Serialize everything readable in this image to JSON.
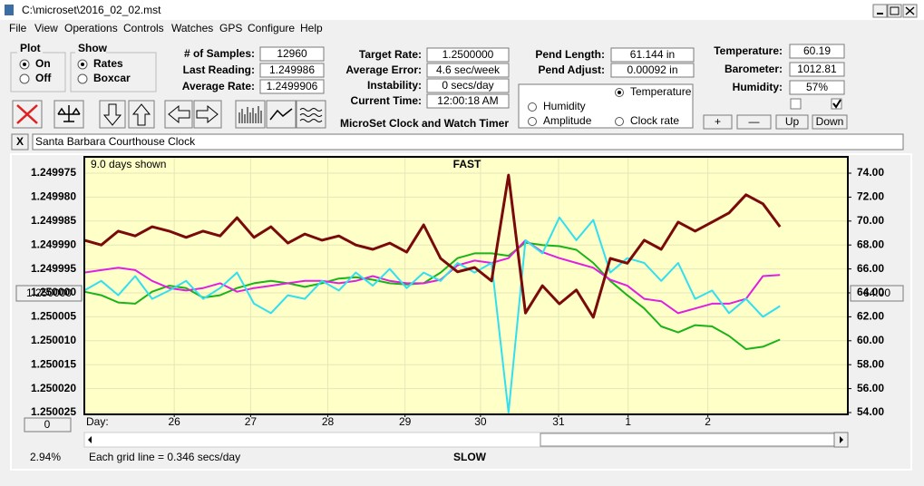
{
  "window": {
    "title": "C:\\microset\\2016_02_02.mst"
  },
  "menu": [
    "File",
    "View",
    "Operations",
    "Controls",
    "Watches",
    "GPS",
    "Configure",
    "Help"
  ],
  "plot_group": {
    "title": "Plot",
    "options": [
      "On",
      "Off"
    ]
  },
  "show_group": {
    "title": "Show",
    "options": [
      "Rates",
      "Boxcar"
    ]
  },
  "fields": [
    [
      {
        "label": "# of Samples:",
        "value": "12960"
      },
      {
        "label": "Last Reading:",
        "value": "1.249986"
      },
      {
        "label": "Average Rate:",
        "value": "1.2499906"
      }
    ],
    [
      {
        "label": "Target Rate:",
        "value": "1.2500000"
      },
      {
        "label": "Average Error:",
        "value": "4.6 sec/week"
      },
      {
        "label": "Instability:",
        "value": "0 secs/day"
      },
      {
        "label": "Current Time:",
        "value": "12:00:18 AM"
      }
    ],
    [
      {
        "label": "Pend Length:",
        "value": "61.144 in"
      },
      {
        "label": "Pend Adjust:",
        "value": "0.00092 in"
      }
    ],
    [
      {
        "label": "Temperature:",
        "value": "60.19"
      },
      {
        "label": "Barometer:",
        "value": "1012.81"
      },
      {
        "label": "Humidity:",
        "value": "57%"
      }
    ]
  ],
  "app_title": "MicroSet Clock and Watch Timer",
  "buttons": [
    "+",
    "—",
    "Up",
    "Down"
  ],
  "close_button": "X",
  "note": "Santa Barbara Courthouse Clock",
  "chart_data": {
    "type": "line",
    "days_shown": "9.0 days shown",
    "top_label": "FAST",
    "bottom_label": "SLOW",
    "x_label": "Day:",
    "grid_note": "Each grid line = 0.346 secs/day",
    "percent": "2.94%",
    "left_center": "1.250000",
    "right_center": "64.00",
    "offset": "0",
    "grid": true,
    "yreverse": true,
    "xlim": [
      0,
      9
    ],
    "xticks": [
      {
        "value": 1.06,
        "label": "26"
      },
      {
        "value": 1.96,
        "label": "27"
      },
      {
        "value": 2.87,
        "label": "28"
      },
      {
        "value": 3.78,
        "label": "29"
      },
      {
        "value": 4.67,
        "label": "30"
      },
      {
        "value": 5.59,
        "label": "31"
      },
      {
        "value": 6.41,
        "label": "1"
      },
      {
        "value": 7.35,
        "label": "2"
      }
    ],
    "ylim": [
      1.249975,
      1.250025
    ],
    "yticks": [
      1.249975,
      {
        "value": 1.24998,
        "label": "1.249980"
      },
      1.249985,
      {
        "value": 1.24999,
        "label": "1.249990"
      },
      1.249995,
      {
        "value": 1.25,
        "label": "1.250000"
      },
      1.250005,
      {
        "value": 1.25001,
        "label": "1.250010"
      },
      1.250015,
      {
        "value": 1.25002,
        "label": "1.250020"
      },
      1.250025
    ],
    "y2lim": [
      54,
      74
    ],
    "y2ticks": [
      {
        "value": 74,
        "label": "74.00"
      },
      {
        "value": 72,
        "label": "72.00"
      },
      {
        "value": 70,
        "label": "70.00"
      },
      {
        "value": 68,
        "label": "68.00"
      },
      {
        "value": 66,
        "label": "66.00"
      },
      {
        "value": 64,
        "label": "64.00"
      },
      {
        "value": 62,
        "label": "62.00"
      },
      {
        "value": 60,
        "label": "60.00"
      },
      {
        "value": 58,
        "label": "58.00"
      },
      {
        "value": 56,
        "label": "56.00"
      },
      {
        "value": 54,
        "label": "54.00"
      }
    ],
    "x": [
      0,
      0.2,
      0.4,
      0.6,
      0.8,
      1.0,
      1.2,
      1.4,
      1.6,
      1.8,
      2.0,
      2.2,
      2.4,
      2.6,
      2.8,
      3.0,
      3.2,
      3.4,
      3.6,
      3.8,
      4.0,
      4.2,
      4.4,
      4.6,
      4.8,
      5.0,
      5.2,
      5.4,
      5.6,
      5.8,
      6.0,
      6.2,
      6.4,
      6.6,
      6.8,
      7.0,
      7.2,
      7.4,
      7.6,
      7.8,
      8.0,
      8.2
    ],
    "series": [
      {
        "name": "Temperature",
        "color": "#1ab31a",
        "axis": "y2",
        "values": [
          64.1,
          63.8,
          63.2,
          63.1,
          64.1,
          64.6,
          64.4,
          63.6,
          63.8,
          64.4,
          64.8,
          65.0,
          64.8,
          64.5,
          64.8,
          65.2,
          65.3,
          65.1,
          64.8,
          64.7,
          64.8,
          65.7,
          66.9,
          67.3,
          67.3,
          67.1,
          68.2,
          68.0,
          67.9,
          67.6,
          66.5,
          65.0,
          63.8,
          62.7,
          61.2,
          60.7,
          61.3,
          61.2,
          60.4,
          59.3,
          59.5,
          60.1
        ]
      },
      {
        "name": "Humidity",
        "color": "#e020e0",
        "axis": "y2",
        "values": [
          65.7,
          65.9,
          66.1,
          65.9,
          65.0,
          64.4,
          64.2,
          64.4,
          64.8,
          64.1,
          64.4,
          64.6,
          64.8,
          65.0,
          65.0,
          64.8,
          65.0,
          65.4,
          65.0,
          64.8,
          64.8,
          65.1,
          66.3,
          66.7,
          66.5,
          66.9,
          68.4,
          67.4,
          66.9,
          66.5,
          66.1,
          65.1,
          64.6,
          63.5,
          63.3,
          62.3,
          62.7,
          63.1,
          63.1,
          63.5,
          65.4,
          65.5
        ]
      },
      {
        "name": "Amplitude",
        "color": "#30e0f0",
        "axis": "y2",
        "values": [
          64.2,
          65.0,
          63.8,
          65.4,
          63.5,
          64.2,
          65.0,
          63.5,
          64.4,
          65.7,
          63.1,
          62.3,
          63.8,
          63.5,
          65.0,
          64.2,
          65.7,
          64.6,
          66.0,
          64.4,
          65.7,
          65.0,
          66.5,
          65.7,
          66.5,
          54.0,
          68.4,
          67.3,
          70.3,
          68.4,
          70.1,
          65.7,
          66.9,
          66.5,
          65.0,
          66.5,
          63.5,
          64.2,
          62.3,
          63.5,
          62.0,
          62.9
        ]
      },
      {
        "name": "Clock rate",
        "color": "#7a0a0a",
        "axis": "y",
        "values": [
          1.249989,
          1.24999,
          1.2499871,
          1.2499881,
          1.2499862,
          1.2499871,
          1.2499884,
          1.2499871,
          1.2499881,
          1.2499843,
          1.2499884,
          1.2499862,
          1.2499896,
          1.2499877,
          1.249989,
          1.2499881,
          1.24999,
          1.2499909,
          1.2499896,
          1.2499915,
          1.2499858,
          1.2499928,
          1.2499956,
          1.2499947,
          1.2499975,
          1.2499754,
          1.2500042,
          1.2499985,
          1.2500023,
          1.2499994,
          1.2500051,
          1.2499928,
          1.2499938,
          1.249989,
          1.2499909,
          1.2499852,
          1.2499871,
          1.2499852,
          1.2499833,
          1.2499795,
          1.2499814,
          1.2499862
        ]
      }
    ]
  }
}
